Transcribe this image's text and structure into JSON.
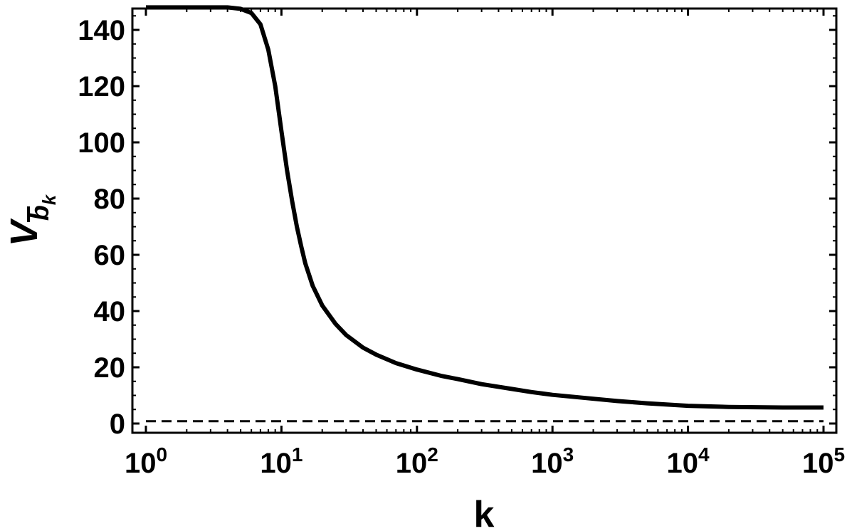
{
  "chart_data": {
    "type": "line",
    "xscale": "log",
    "xlim": [
      1,
      100000
    ],
    "ylim": [
      -2,
      156
    ],
    "xlabel": "k",
    "ylabel": {
      "main": "V",
      "sub": "b",
      "subsub": "k"
    },
    "x_ticks": [
      {
        "base": "10",
        "exp": "0",
        "value": 1
      },
      {
        "base": "10",
        "exp": "1",
        "value": 10
      },
      {
        "base": "10",
        "exp": "2",
        "value": 100
      },
      {
        "base": "10",
        "exp": "3",
        "value": 1000
      },
      {
        "base": "10",
        "exp": "4",
        "value": 10000
      },
      {
        "base": "10",
        "exp": "5",
        "value": 100000
      }
    ],
    "y_ticks": [
      {
        "label": "0",
        "value": 0
      },
      {
        "label": "20",
        "value": 20
      },
      {
        "label": "40",
        "value": 40
      },
      {
        "label": "60",
        "value": 60
      },
      {
        "label": "80",
        "value": 80
      },
      {
        "label": "100",
        "value": 100
      },
      {
        "label": "120",
        "value": 120
      },
      {
        "label": "140",
        "value": 140
      }
    ],
    "grid": false,
    "series": [
      {
        "style": "solid",
        "x": [
          1,
          2,
          3,
          4,
          5,
          6,
          7,
          8,
          9,
          10,
          11,
          12,
          13,
          14,
          15,
          17,
          20,
          25,
          30,
          40,
          50,
          70,
          100,
          150,
          200,
          300,
          500,
          700,
          1000,
          2000,
          3000,
          5000,
          10000,
          20000,
          50000,
          100000
        ],
        "y": [
          148,
          148,
          148,
          148,
          147.5,
          146,
          142,
          133,
          120,
          104,
          90,
          79,
          70,
          63,
          57,
          49,
          42,
          35.5,
          31.5,
          27,
          24.5,
          21.5,
          19.2,
          17,
          15.8,
          14,
          12.3,
          11.2,
          10.2,
          8.8,
          8.0,
          7.2,
          6.3,
          5.9,
          5.7,
          5.7
        ]
      },
      {
        "style": "dashed",
        "x": [
          1,
          100000
        ],
        "y": [
          0.8,
          0.8
        ]
      }
    ]
  }
}
